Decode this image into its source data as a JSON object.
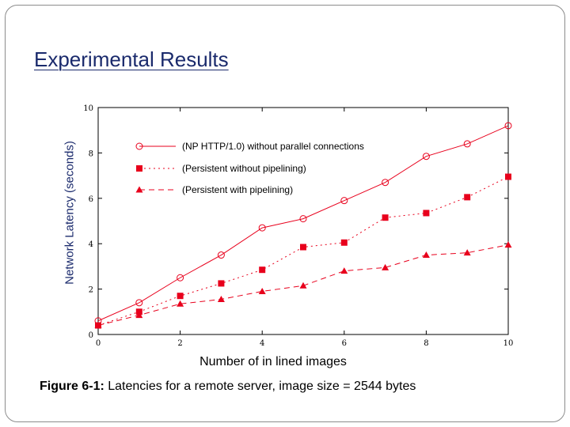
{
  "slide": {
    "title": "Experimental Results",
    "caption_bold": "Figure 6-1:",
    "caption_text": " Latencies for a remote server, image size = 2544 bytes"
  },
  "chart_data": {
    "type": "line",
    "xlabel": "Number of in lined images",
    "ylabel": "Network Latency (seconds)",
    "xlim": [
      0,
      10
    ],
    "ylim": [
      0,
      10
    ],
    "x_ticks": [
      "0",
      "2",
      "4",
      "6",
      "8",
      "10"
    ],
    "y_ticks": [
      "0",
      "2",
      "4",
      "6",
      "8",
      "10"
    ],
    "grid": false,
    "legend_placement": "top-left",
    "x": [
      0,
      1,
      2,
      3,
      4,
      5,
      6,
      7,
      8,
      9,
      10
    ],
    "series": [
      {
        "name": "(NP HTTP/1.0) without parallel connections",
        "values": [
          0.6,
          1.4,
          2.5,
          3.5,
          4.7,
          5.1,
          5.9,
          6.7,
          7.85,
          8.4,
          9.2
        ],
        "color": "#e8001c",
        "marker": "circle",
        "dash": "solid"
      },
      {
        "name": "(Persistent without pipelining)",
        "values": [
          0.4,
          1.0,
          1.7,
          2.25,
          2.85,
          3.85,
          4.05,
          5.15,
          5.35,
          6.05,
          6.95
        ],
        "color": "#e8001c",
        "marker": "square",
        "dash": "dotted"
      },
      {
        "name": "(Persistent with pipelining)",
        "values": [
          0.4,
          0.85,
          1.35,
          1.55,
          1.9,
          2.15,
          2.8,
          2.95,
          3.5,
          3.6,
          3.95
        ],
        "color": "#e8001c",
        "marker": "triangle",
        "dash": "dashed"
      }
    ]
  }
}
